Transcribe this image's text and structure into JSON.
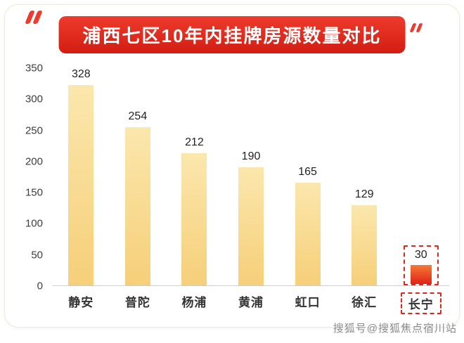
{
  "title": "浦西七区10年内挂牌房源数量对比",
  "watermark": "搜狐号@搜狐焦点宿川站",
  "colors": {
    "banner": "#ee3b2d",
    "banner_dark": "#d41d12",
    "bar_top": "#fbe7ad",
    "bar_bottom": "#f6cf79",
    "highlight_top": "#f57a38",
    "highlight_bottom": "#e02315",
    "highlight_border": "#e1251b"
  },
  "chart_data": {
    "type": "bar",
    "title": "浦西七区10年内挂牌房源数量对比",
    "categories": [
      "静安",
      "普陀",
      "杨浦",
      "黄浦",
      "虹口",
      "徐汇",
      "长宁"
    ],
    "values": [
      328,
      254,
      212,
      190,
      165,
      129,
      30
    ],
    "xlabel": "",
    "ylabel": "",
    "ylim": [
      0,
      350
    ],
    "yticks": [
      0,
      50,
      100,
      150,
      200,
      250,
      300,
      350
    ],
    "grid": false,
    "legend": "none",
    "highlight_category": "长宁",
    "highlight_value": 30
  }
}
